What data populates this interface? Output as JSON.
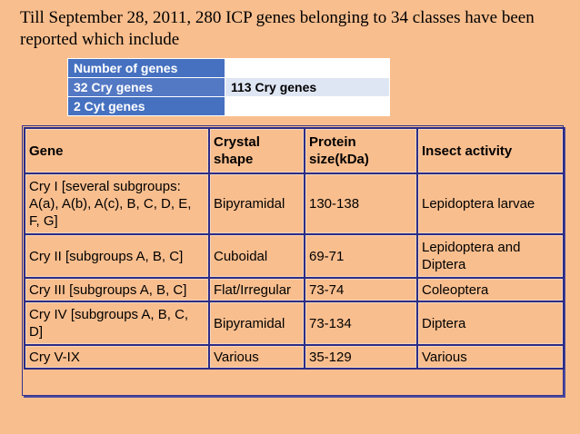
{
  "intro_text": "Till September 28, 2011, 280 ICP genes belonging to 34 classes have been reported which include",
  "summary_table": {
    "rows": [
      [
        "Number of genes",
        ""
      ],
      [
        "32 Cry genes",
        "113 Cry genes"
      ],
      [
        "2 Cyt genes",
        ""
      ]
    ]
  },
  "gene_table": {
    "headers": [
      "Gene",
      "Crystal shape",
      "Protein size(kDa)",
      "Insect activity"
    ],
    "rows": [
      [
        "Cry I [several subgroups: A(a), A(b), A(c), B, C, D, E, F, G]",
        "Bipyramidal",
        "130-138",
        "Lepidoptera larvae"
      ],
      [
        "Cry II [subgroups A, B, C]",
        "Cuboidal",
        "69-71",
        "Lepidoptera and Diptera"
      ],
      [
        "Cry III [subgroups A, B, C]",
        "Flat/Irregular",
        "73-74",
        "Coleoptera"
      ],
      [
        "Cry IV [subgroups A, B, C, D]",
        "Bipyramidal",
        "73-134",
        "Diptera"
      ],
      [
        "Cry V-IX",
        "Various",
        "35-129",
        "Various"
      ]
    ]
  },
  "colors": {
    "background": "#f9be8e",
    "summary_header": "#4671c0",
    "table_border": "#2c2c86"
  }
}
